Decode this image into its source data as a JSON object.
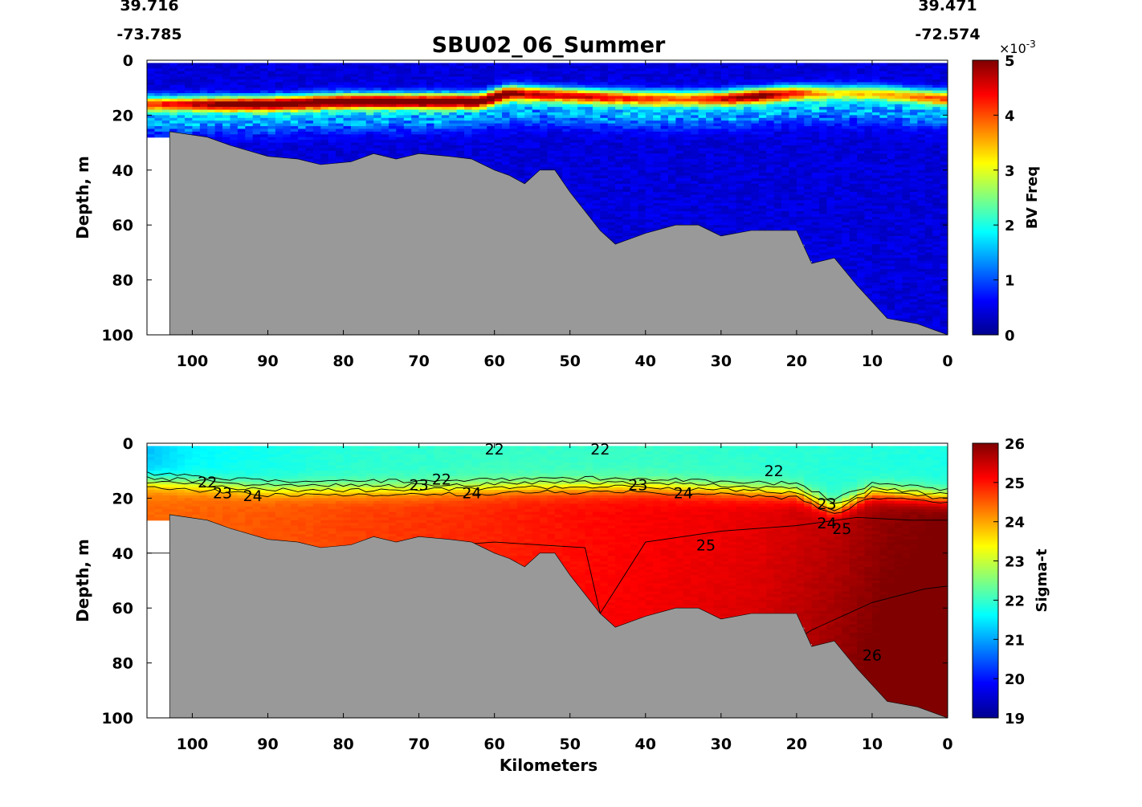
{
  "title": "SBU02_06_Summer",
  "coords": {
    "left_lat": "39.716",
    "left_lon": "-73.785",
    "right_lat": "39.471",
    "right_lon": "-72.574"
  },
  "colors": {
    "seafloor": "#999999",
    "jet": [
      "#00008f",
      "#0000ff",
      "#0080ff",
      "#00ffff",
      "#80ff80",
      "#ffff00",
      "#ff8000",
      "#ff0000",
      "#800000"
    ]
  },
  "chart_data": [
    {
      "type": "heatmap",
      "name": "bv-frequency-section",
      "ylabel": "Depth, m",
      "xlabel": "",
      "xlim": [
        106,
        0
      ],
      "ylim": [
        0,
        100
      ],
      "xticks": [
        "100",
        "90",
        "80",
        "70",
        "60",
        "50",
        "40",
        "30",
        "20",
        "10",
        "0"
      ],
      "yticks": [
        "0",
        "20",
        "40",
        "60",
        "80",
        "100"
      ],
      "colorbar": {
        "label": "BV Freq",
        "exponent": "×10",
        "exponent_power": "-3",
        "range": [
          0,
          5
        ],
        "ticks": [
          "0",
          "1",
          "2",
          "3",
          "4",
          "5"
        ]
      },
      "high_layer": {
        "depth_center_m": [
          [
            105,
            16
          ],
          [
            90,
            16
          ],
          [
            80,
            15
          ],
          [
            70,
            15
          ],
          [
            62,
            15
          ],
          [
            58,
            12
          ],
          [
            50,
            13
          ],
          [
            40,
            14
          ],
          [
            30,
            14
          ],
          [
            20,
            12
          ],
          [
            10,
            12
          ],
          [
            0,
            14
          ]
        ],
        "peak_x1000": [
          [
            105,
            3.5
          ],
          [
            95,
            4.6
          ],
          [
            85,
            4.8
          ],
          [
            75,
            4.9
          ],
          [
            65,
            4.8
          ],
          [
            60,
            4.9
          ],
          [
            55,
            4.0
          ],
          [
            45,
            3.8
          ],
          [
            35,
            3.2
          ],
          [
            25,
            4.6
          ],
          [
            15,
            2.5
          ],
          [
            5,
            3.0
          ],
          [
            0,
            3.5
          ]
        ]
      }
    },
    {
      "type": "heatmap",
      "name": "sigma-t-section",
      "ylabel": "Depth, m",
      "xlabel": "Kilometers",
      "xlim": [
        106,
        0
      ],
      "ylim": [
        0,
        100
      ],
      "xticks": [
        "100",
        "90",
        "80",
        "70",
        "60",
        "50",
        "40",
        "30",
        "20",
        "10",
        "0"
      ],
      "yticks": [
        "0",
        "20",
        "40",
        "60",
        "80",
        "100"
      ],
      "colorbar": {
        "label": "Sigma-t",
        "range": [
          19,
          26
        ],
        "ticks": [
          "19",
          "20",
          "21",
          "22",
          "23",
          "24",
          "25",
          "26"
        ]
      },
      "contour_levels": [
        22,
        23,
        24,
        25,
        26
      ],
      "contour_labels": [
        {
          "text": "22",
          "x": 98,
          "y": 14
        },
        {
          "text": "23",
          "x": 96,
          "y": 18
        },
        {
          "text": "24",
          "x": 92,
          "y": 19
        },
        {
          "text": "23",
          "x": 70,
          "y": 15
        },
        {
          "text": "22",
          "x": 67,
          "y": 13
        },
        {
          "text": "24",
          "x": 63,
          "y": 18
        },
        {
          "text": "22",
          "x": 60,
          "y": 2
        },
        {
          "text": "22",
          "x": 46,
          "y": 2
        },
        {
          "text": "23",
          "x": 41,
          "y": 15
        },
        {
          "text": "24",
          "x": 35,
          "y": 18
        },
        {
          "text": "22",
          "x": 23,
          "y": 10
        },
        {
          "text": "23",
          "x": 16,
          "y": 22
        },
        {
          "text": "24",
          "x": 16,
          "y": 29
        },
        {
          "text": "25",
          "x": 14,
          "y": 31
        },
        {
          "text": "25",
          "x": 32,
          "y": 37
        },
        {
          "text": "26",
          "x": 10,
          "y": 77
        }
      ]
    }
  ],
  "bathymetry": [
    [
      103,
      26
    ],
    [
      98,
      28
    ],
    [
      95,
      31
    ],
    [
      90,
      35
    ],
    [
      86,
      36
    ],
    [
      83,
      38
    ],
    [
      79,
      37
    ],
    [
      76,
      34
    ],
    [
      73,
      36
    ],
    [
      70,
      34
    ],
    [
      66,
      35
    ],
    [
      63,
      36
    ],
    [
      60,
      40
    ],
    [
      58,
      42
    ],
    [
      56,
      45
    ],
    [
      54,
      40
    ],
    [
      52,
      40
    ],
    [
      50,
      48
    ],
    [
      48,
      55
    ],
    [
      46,
      62
    ],
    [
      44,
      67
    ],
    [
      40,
      63
    ],
    [
      36,
      60
    ],
    [
      33,
      60
    ],
    [
      30,
      64
    ],
    [
      26,
      62
    ],
    [
      22,
      62
    ],
    [
      20,
      62
    ],
    [
      18,
      74
    ],
    [
      15,
      72
    ],
    [
      12,
      82
    ],
    [
      8,
      94
    ],
    [
      4,
      96
    ],
    [
      0,
      100
    ]
  ]
}
